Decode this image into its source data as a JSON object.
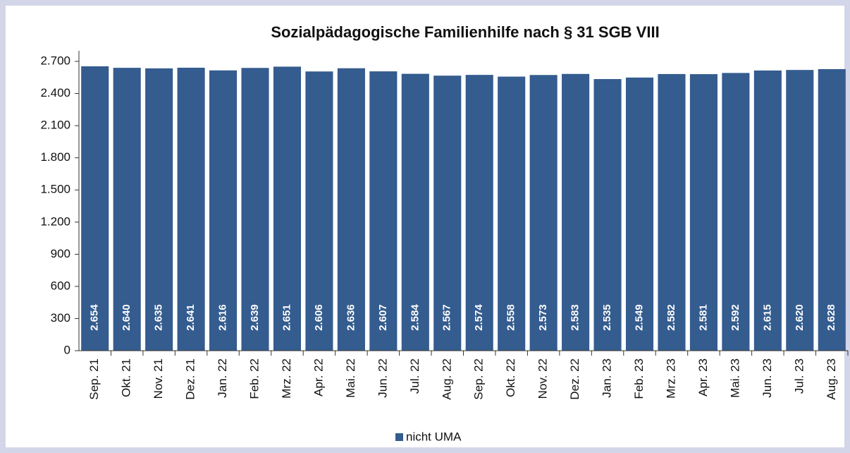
{
  "chart_data": {
    "type": "bar",
    "title": "Sozialpädagogische Familienhilfe nach § 31 SGB VIII",
    "categories": [
      "Sep. 21",
      "Okt. 21",
      "Nov. 21",
      "Dez. 21",
      "Jan. 22",
      "Feb. 22",
      "Mrz. 22",
      "Apr. 22",
      "Mai. 22",
      "Jun. 22",
      "Jul. 22",
      "Aug. 22",
      "Sep. 22",
      "Okt. 22",
      "Nov. 22",
      "Dez. 22",
      "Jan. 23",
      "Feb. 23",
      "Mrz. 23",
      "Apr. 23",
      "Mai. 23",
      "Jun. 23",
      "Jul. 23",
      "Aug. 23"
    ],
    "series": [
      {
        "name": "nicht UMA",
        "color": "#345c8f",
        "values": [
          2654,
          2640,
          2635,
          2641,
          2616,
          2639,
          2651,
          2606,
          2636,
          2607,
          2584,
          2567,
          2574,
          2558,
          2573,
          2583,
          2535,
          2549,
          2582,
          2581,
          2592,
          2615,
          2620,
          2628
        ],
        "value_labels": [
          "2.654",
          "2.640",
          "2.635",
          "2.641",
          "2.616",
          "2.639",
          "2.651",
          "2.606",
          "2.636",
          "2.607",
          "2.584",
          "2.567",
          "2.574",
          "2.558",
          "2.573",
          "2.583",
          "2.535",
          "2.549",
          "2.582",
          "2.581",
          "2.592",
          "2.615",
          "2.620",
          "2.628"
        ]
      }
    ],
    "ylim": [
      0,
      2700
    ],
    "yticks": [
      0,
      300,
      600,
      900,
      {
        "value": 1200,
        "label": "1.200"
      },
      {
        "value": 1500,
        "label": "1.500"
      },
      {
        "value": 1800,
        "label": "1.800"
      },
      {
        "value": 2100,
        "label": "2.100"
      },
      {
        "value": 2400,
        "label": "2.400"
      },
      {
        "value": 2700,
        "label": "2.700"
      }
    ],
    "legend": "bottom"
  }
}
